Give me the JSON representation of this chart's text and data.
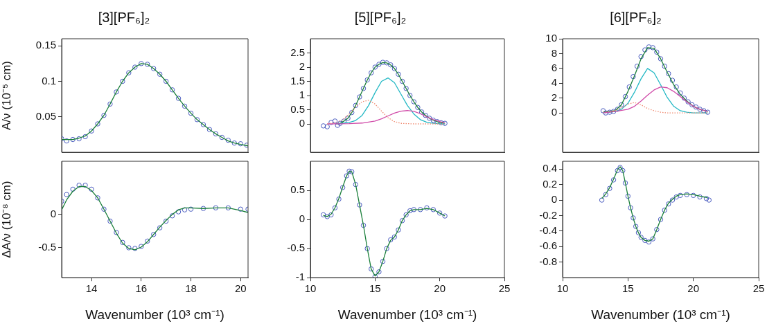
{
  "chart_data": [
    {
      "type": "scatter",
      "title": "[3][PF₆]₂",
      "ylabel": "A/ν (10⁻⁵ cm)",
      "xlim": [
        12.8,
        20.3
      ],
      "xticks": [
        14,
        16,
        18,
        20
      ],
      "ylim": [
        0,
        0.16
      ],
      "yticks": [
        0.05,
        0.1,
        0.15
      ],
      "tick_labels": "y",
      "series": [
        {
          "type": "scatter",
          "marker": "circle",
          "color": "#4a5cc0",
          "x": [
            12.8,
            13.0,
            13.25,
            13.5,
            13.75,
            14.0,
            14.25,
            14.5,
            14.75,
            15.0,
            15.25,
            15.5,
            15.75,
            16.0,
            16.25,
            16.5,
            16.75,
            17.0,
            17.25,
            17.5,
            17.75,
            18.0,
            18.25,
            18.5,
            18.75,
            19.0,
            19.25,
            19.5,
            19.75,
            20.0,
            20.25
          ],
          "values": [
            0.019,
            0.016,
            0.018,
            0.019,
            0.022,
            0.03,
            0.04,
            0.052,
            0.068,
            0.085,
            0.1,
            0.112,
            0.12,
            0.125,
            0.124,
            0.118,
            0.11,
            0.1,
            0.088,
            0.076,
            0.065,
            0.055,
            0.046,
            0.039,
            0.032,
            0.026,
            0.021,
            0.017,
            0.013,
            0.012,
            0.01
          ]
        },
        {
          "type": "line",
          "color": "#1a7f3a",
          "x": [
            12.8,
            13.25,
            13.5,
            13.75,
            14.0,
            14.25,
            14.5,
            14.75,
            15.0,
            15.25,
            15.5,
            15.75,
            16.0,
            16.25,
            16.5,
            16.75,
            17.0,
            17.25,
            17.5,
            17.75,
            18.0,
            18.25,
            18.5,
            18.75,
            19.0,
            19.25,
            19.5,
            19.75,
            20.0,
            20.3
          ],
          "values": [
            0.018,
            0.018,
            0.02,
            0.023,
            0.03,
            0.04,
            0.052,
            0.068,
            0.085,
            0.1,
            0.112,
            0.12,
            0.125,
            0.124,
            0.118,
            0.11,
            0.1,
            0.088,
            0.076,
            0.065,
            0.055,
            0.046,
            0.039,
            0.032,
            0.026,
            0.021,
            0.016,
            0.013,
            0.011,
            0.009
          ]
        }
      ]
    },
    {
      "type": "scatter",
      "title": "[5][PF₆]₂",
      "xlim": [
        10,
        25
      ],
      "xticks": [
        10,
        15,
        20,
        25
      ],
      "ylim": [
        -1,
        3
      ],
      "yticks": [
        0,
        0.5,
        1,
        1.5,
        2,
        2.5
      ],
      "tick_labels": "y",
      "series": [
        {
          "type": "scatter",
          "marker": "circle",
          "color": "#4a5cc0",
          "x": [
            11.0,
            11.3,
            11.6,
            11.9,
            12.1,
            12.3,
            12.6,
            12.9,
            13.2,
            13.5,
            13.8,
            14.1,
            14.4,
            14.7,
            15.0,
            15.3,
            15.6,
            15.9,
            16.2,
            16.5,
            16.8,
            17.1,
            17.4,
            17.7,
            18.0,
            18.3,
            18.6,
            18.9,
            19.2,
            19.5,
            19.8,
            20.1,
            20.4
          ],
          "values": [
            -0.07,
            -0.1,
            0.05,
            0.1,
            -0.05,
            0.02,
            0.1,
            0.2,
            0.4,
            0.65,
            0.95,
            1.25,
            1.55,
            1.8,
            2.0,
            2.1,
            2.17,
            2.15,
            2.08,
            1.95,
            1.75,
            1.5,
            1.25,
            1.0,
            0.78,
            0.58,
            0.42,
            0.3,
            0.2,
            0.13,
            0.08,
            0.04,
            0.02
          ]
        },
        {
          "type": "line",
          "color": "#1a7f3a",
          "x": [
            12.0,
            12.3,
            12.6,
            12.9,
            13.2,
            13.5,
            13.8,
            14.1,
            14.4,
            14.7,
            15.0,
            15.3,
            15.6,
            15.9,
            16.2,
            16.5,
            16.8,
            17.1,
            17.4,
            17.7,
            18.0,
            18.3,
            18.6,
            18.9,
            19.2,
            19.5,
            19.8,
            20.1,
            20.4
          ],
          "values": [
            0.0,
            0.02,
            0.1,
            0.2,
            0.4,
            0.65,
            0.95,
            1.25,
            1.55,
            1.8,
            2.0,
            2.1,
            2.16,
            2.15,
            2.08,
            1.95,
            1.75,
            1.5,
            1.25,
            1.0,
            0.78,
            0.58,
            0.42,
            0.3,
            0.2,
            0.13,
            0.08,
            0.04,
            0.02
          ]
        },
        {
          "type": "line",
          "color": "#22b8c4",
          "x": [
            12.0,
            13.0,
            13.5,
            14.0,
            14.5,
            15.0,
            15.5,
            16.0,
            16.5,
            17.0,
            17.5,
            18.0,
            18.5,
            19.0,
            19.5,
            20.4
          ],
          "values": [
            0.0,
            0.05,
            0.12,
            0.3,
            0.65,
            1.1,
            1.5,
            1.62,
            1.45,
            1.05,
            0.65,
            0.35,
            0.15,
            0.06,
            0.02,
            0.0
          ]
        },
        {
          "type": "line",
          "color": "#d04aa8",
          "x": [
            11.3,
            13.0,
            14.0,
            15.0,
            15.5,
            16.0,
            16.5,
            17.0,
            17.5,
            18.0,
            18.5,
            19.0,
            19.5,
            20.0,
            20.4
          ],
          "values": [
            0.0,
            0.01,
            0.03,
            0.1,
            0.18,
            0.28,
            0.38,
            0.45,
            0.47,
            0.44,
            0.36,
            0.25,
            0.15,
            0.08,
            0.04
          ]
        },
        {
          "type": "line",
          "line_style": "dotted",
          "color": "#f08a70",
          "x": [
            11.3,
            12.0,
            12.5,
            13.0,
            13.5,
            14.0,
            14.5,
            15.0,
            15.5,
            16.0,
            16.5,
            17.0,
            18.0,
            20.4
          ],
          "values": [
            0.0,
            0.05,
            0.15,
            0.35,
            0.6,
            0.78,
            0.83,
            0.7,
            0.45,
            0.22,
            0.08,
            0.02,
            0.0,
            0.0
          ]
        }
      ]
    },
    {
      "type": "scatter",
      "title": "[6][PF₆]₂",
      "xlim": [
        10,
        25
      ],
      "xticks": [
        10,
        15,
        20,
        25
      ],
      "ylim": [
        -5.3,
        10
      ],
      "yticks": [
        0,
        2,
        4,
        6,
        8,
        10
      ],
      "tick_labels": "y",
      "series": [
        {
          "type": "scatter",
          "marker": "circle",
          "color": "#4a5cc0",
          "x": [
            13.1,
            13.3,
            13.6,
            13.9,
            14.2,
            14.5,
            14.8,
            15.1,
            15.4,
            15.7,
            16.0,
            16.3,
            16.6,
            16.9,
            17.2,
            17.5,
            17.8,
            18.1,
            18.4,
            18.7,
            19.0,
            19.3,
            19.6,
            19.9,
            20.2,
            20.5,
            20.8,
            21.1
          ],
          "values": [
            0.3,
            0.0,
            0.1,
            0.2,
            0.5,
            1.1,
            2.2,
            3.5,
            4.9,
            6.3,
            7.6,
            8.5,
            8.9,
            8.8,
            8.2,
            7.3,
            6.3,
            5.3,
            4.4,
            3.5,
            2.7,
            2.0,
            1.5,
            1.1,
            0.8,
            0.5,
            0.3,
            0.1
          ]
        },
        {
          "type": "line",
          "color": "#1a7f3a",
          "x": [
            13.1,
            14.0,
            14.5,
            15.0,
            15.5,
            16.0,
            16.5,
            17.0,
            17.5,
            18.0,
            18.5,
            19.0,
            19.5,
            20.0,
            20.5,
            21.1
          ],
          "values": [
            0.1,
            0.3,
            1.1,
            2.9,
            5.0,
            7.3,
            8.8,
            8.7,
            7.3,
            5.5,
            3.8,
            2.5,
            1.6,
            0.9,
            0.5,
            0.2
          ]
        },
        {
          "type": "line",
          "color": "#22b8c4",
          "x": [
            13.1,
            14.0,
            14.5,
            15.0,
            15.5,
            16.0,
            16.5,
            17.0,
            17.5,
            18.0,
            18.5,
            19.0,
            19.5,
            20.0,
            21.1
          ],
          "values": [
            0.0,
            0.2,
            0.5,
            1.3,
            2.8,
            4.6,
            6.0,
            5.4,
            3.8,
            2.1,
            0.9,
            0.3,
            0.1,
            0.0,
            0.0
          ]
        },
        {
          "type": "line",
          "color": "#d04aa8",
          "x": [
            13.1,
            14.0,
            15.0,
            15.5,
            16.0,
            16.5,
            17.0,
            17.5,
            18.0,
            18.5,
            19.0,
            19.5,
            20.0,
            20.5,
            21.1
          ],
          "values": [
            0.0,
            0.2,
            0.5,
            0.9,
            1.6,
            2.4,
            3.1,
            3.5,
            3.4,
            2.9,
            2.2,
            1.5,
            0.9,
            0.5,
            0.2
          ]
        },
        {
          "type": "line",
          "line_style": "dotted",
          "color": "#f08a70",
          "x": [
            13.1,
            14.0,
            14.5,
            15.0,
            15.5,
            16.0,
            16.5,
            17.0,
            17.5,
            18.0,
            19.0,
            21.1
          ],
          "values": [
            0.1,
            0.3,
            0.7,
            1.2,
            1.4,
            1.1,
            0.6,
            0.3,
            0.1,
            0.0,
            0.0,
            0.0
          ]
        }
      ]
    },
    {
      "type": "scatter",
      "ylabel": "ΔA/ν (10⁻⁸ cm)",
      "xlabel": "Wavenumber (10³ cm⁻¹)",
      "xlim": [
        12.8,
        20.3
      ],
      "xticks": [
        14,
        16,
        18,
        20
      ],
      "ylim": [
        -0.95,
        0.8
      ],
      "yticks": [
        -0.5,
        0
      ],
      "series": [
        {
          "type": "scatter",
          "marker": "circle",
          "color": "#4a5cc0",
          "x": [
            12.8,
            13.0,
            13.25,
            13.5,
            13.75,
            14.0,
            14.25,
            14.5,
            14.75,
            15.0,
            15.25,
            15.5,
            15.75,
            16.0,
            16.25,
            16.5,
            16.75,
            17.0,
            17.25,
            17.5,
            17.75,
            18.0,
            18.5,
            19.0,
            19.5,
            20.0,
            20.3
          ],
          "values": [
            0.2,
            0.3,
            0.38,
            0.44,
            0.44,
            0.38,
            0.25,
            0.08,
            -0.1,
            -0.27,
            -0.42,
            -0.5,
            -0.51,
            -0.48,
            -0.4,
            -0.3,
            -0.2,
            -0.1,
            -0.02,
            0.04,
            0.07,
            0.08,
            0.09,
            0.1,
            0.1,
            0.08,
            0.08
          ]
        },
        {
          "type": "line",
          "color": "#1a7f3a",
          "x": [
            12.8,
            13.0,
            13.25,
            13.5,
            13.75,
            14.0,
            14.25,
            14.5,
            14.75,
            15.0,
            15.25,
            15.5,
            15.75,
            16.0,
            16.25,
            16.5,
            16.75,
            17.0,
            17.25,
            17.5,
            17.75,
            18.0,
            18.5,
            19.0,
            19.5,
            20.0,
            20.3
          ],
          "values": [
            0.07,
            0.22,
            0.35,
            0.42,
            0.42,
            0.36,
            0.25,
            0.08,
            -0.1,
            -0.28,
            -0.43,
            -0.51,
            -0.53,
            -0.49,
            -0.41,
            -0.3,
            -0.19,
            -0.09,
            0.0,
            0.07,
            0.1,
            0.1,
            0.09,
            0.1,
            0.1,
            0.06,
            0.03
          ]
        }
      ]
    },
    {
      "type": "scatter",
      "xlabel": "Wavenumber (10³ cm⁻¹)",
      "xlim": [
        10,
        25
      ],
      "xticks": [
        10,
        15,
        20,
        25
      ],
      "ylim": [
        -1,
        1
      ],
      "yticks": [
        -1,
        -0.5,
        0,
        0.5
      ],
      "series": [
        {
          "type": "scatter",
          "marker": "circle",
          "color": "#4a5cc0",
          "x": [
            11.0,
            11.3,
            11.6,
            11.9,
            12.2,
            12.5,
            12.8,
            13.0,
            13.2,
            13.5,
            13.8,
            14.1,
            14.4,
            14.7,
            15.0,
            15.3,
            15.6,
            15.9,
            16.2,
            16.5,
            16.8,
            17.1,
            17.4,
            17.7,
            18.0,
            18.5,
            19.0,
            19.5,
            20.0,
            20.4
          ],
          "values": [
            0.08,
            0.05,
            0.08,
            0.2,
            0.35,
            0.55,
            0.75,
            0.83,
            0.82,
            0.6,
            0.25,
            -0.1,
            -0.5,
            -0.85,
            -0.98,
            -0.9,
            -0.72,
            -0.5,
            -0.35,
            -0.3,
            -0.18,
            -0.02,
            0.08,
            0.15,
            0.17,
            0.17,
            0.2,
            0.17,
            0.11,
            0.06
          ]
        },
        {
          "type": "line",
          "color": "#1a7f3a",
          "x": [
            11.0,
            11.3,
            11.6,
            11.9,
            12.2,
            12.5,
            12.8,
            13.0,
            13.2,
            13.5,
            13.8,
            14.1,
            14.4,
            14.7,
            15.0,
            15.3,
            15.6,
            15.9,
            16.2,
            16.5,
            16.8,
            17.1,
            17.4,
            17.7,
            18.0,
            18.5,
            19.0,
            19.5,
            20.0,
            20.4
          ],
          "values": [
            0.07,
            0.05,
            0.09,
            0.2,
            0.36,
            0.56,
            0.75,
            0.83,
            0.82,
            0.6,
            0.25,
            -0.1,
            -0.5,
            -0.85,
            -0.97,
            -0.9,
            -0.72,
            -0.5,
            -0.36,
            -0.3,
            -0.18,
            -0.02,
            0.08,
            0.15,
            0.17,
            0.17,
            0.19,
            0.17,
            0.11,
            0.06
          ]
        }
      ]
    },
    {
      "type": "scatter",
      "xlabel": "Wavenumber (10³ cm⁻¹)",
      "xlim": [
        10,
        25
      ],
      "xticks": [
        10,
        15,
        20,
        25
      ],
      "ylim": [
        -1,
        0.5
      ],
      "yticks": [
        -0.8,
        -0.6,
        -0.4,
        -0.2,
        0,
        0.2,
        0.4
      ],
      "series": [
        {
          "type": "scatter",
          "marker": "circle",
          "color": "#4a5cc0",
          "x": [
            13.0,
            13.3,
            13.6,
            13.9,
            14.2,
            14.4,
            14.6,
            14.8,
            15.0,
            15.2,
            15.4,
            15.6,
            15.8,
            16.0,
            16.3,
            16.6,
            16.9,
            17.2,
            17.5,
            17.8,
            18.1,
            18.4,
            18.7,
            19.0,
            19.5,
            20.0,
            20.5,
            21.0,
            21.2
          ],
          "values": [
            0.0,
            0.07,
            0.15,
            0.26,
            0.38,
            0.42,
            0.38,
            0.22,
            0.05,
            -0.1,
            -0.23,
            -0.34,
            -0.42,
            -0.48,
            -0.52,
            -0.54,
            -0.5,
            -0.38,
            -0.25,
            -0.13,
            -0.05,
            0.0,
            0.04,
            0.06,
            0.07,
            0.06,
            0.04,
            0.02,
            0.0
          ]
        },
        {
          "type": "line",
          "color": "#1a7f3a",
          "x": [
            13.0,
            13.3,
            13.6,
            13.9,
            14.2,
            14.4,
            14.6,
            14.8,
            15.0,
            15.2,
            15.4,
            15.6,
            15.8,
            16.0,
            16.3,
            16.6,
            16.9,
            17.2,
            17.5,
            17.8,
            18.1,
            18.4,
            18.7,
            19.0,
            19.5,
            20.0,
            20.5,
            21.1
          ],
          "values": [
            0.02,
            0.08,
            0.16,
            0.27,
            0.39,
            0.43,
            0.38,
            0.22,
            0.05,
            -0.1,
            -0.23,
            -0.34,
            -0.42,
            -0.48,
            -0.52,
            -0.53,
            -0.5,
            -0.38,
            -0.25,
            -0.13,
            -0.04,
            0.01,
            0.05,
            0.07,
            0.08,
            0.07,
            0.05,
            0.03
          ]
        }
      ]
    }
  ]
}
